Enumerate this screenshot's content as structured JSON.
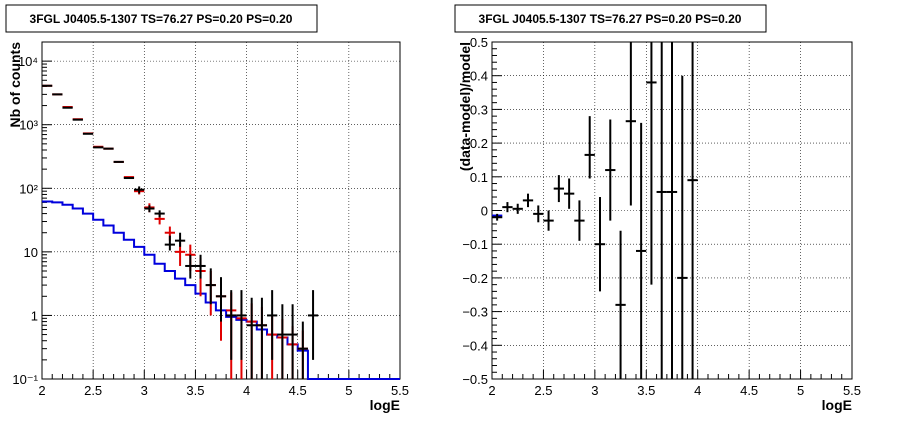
{
  "chart_data": [
    {
      "type": "histogram",
      "title": "3FGL J0405.5-1307 TS=76.27 PS=0.20 PS=0.20",
      "xlabel": "logE",
      "ylabel": "Nb of counts",
      "xlim": [
        2,
        5.5
      ],
      "ylim": [
        0.1,
        20000
      ],
      "yscale": "log",
      "grid": true,
      "xticks": [
        "2",
        "2.5",
        "3",
        "3.5",
        "4",
        "4.5",
        "5",
        "5.5"
      ],
      "yticks": [
        "10⁻¹",
        "1",
        "10",
        "10²",
        "10³",
        "10⁴"
      ],
      "series": [
        {
          "kind": "errorbar",
          "color": "#000000",
          "x": [
            2.05,
            2.15,
            2.25,
            2.35,
            2.45,
            2.55,
            2.65,
            2.75,
            2.85,
            2.95,
            3.05,
            3.15,
            3.25,
            3.35,
            3.45,
            3.55,
            3.65,
            3.75,
            3.85,
            3.95,
            4.05,
            4.15,
            4.25,
            4.35,
            4.45,
            4.55,
            4.65
          ],
          "y": [
            4100,
            3000,
            1850,
            1200,
            720,
            440,
            420,
            260,
            145,
            95,
            48,
            40,
            13,
            15,
            6,
            6,
            3,
            2,
            1,
            1,
            0.7,
            0.7,
            1,
            0.5,
            0.5,
            0.3,
            1
          ],
          "yerr_low": [
            0,
            0,
            0,
            0,
            0,
            0,
            0,
            0,
            0,
            12,
            6,
            5,
            2.5,
            3,
            2.2,
            2.2,
            1.5,
            1.2,
            0.8,
            0.8,
            0.6,
            0.6,
            0.8,
            0.4,
            0.4,
            0.25,
            0.8
          ],
          "yerr_high": [
            0,
            0,
            0,
            0,
            0,
            0,
            0,
            0,
            0,
            12,
            6,
            5,
            5,
            5,
            3,
            3,
            2.5,
            2,
            1.5,
            1.5,
            1.2,
            1.2,
            1.5,
            1,
            1,
            0.5,
            1.5
          ]
        },
        {
          "kind": "errorbar",
          "color": "#e00000",
          "x": [
            2.05,
            2.15,
            2.25,
            2.35,
            2.45,
            2.55,
            2.65,
            2.75,
            2.85,
            2.95,
            3.05,
            3.15,
            3.25,
            3.35,
            3.45,
            3.55,
            3.65,
            3.75,
            3.85,
            3.95,
            4.05,
            4.15,
            4.25,
            4.35,
            4.45,
            4.55
          ],
          "y": [
            4100,
            3000,
            1900,
            1220,
            730,
            450,
            420,
            260,
            150,
            90,
            50,
            33,
            20,
            10,
            9,
            5,
            3,
            2,
            1.2,
            0.9,
            0.8,
            0.7,
            0.5,
            0.45,
            0.35,
            0.3
          ],
          "yerr_low": [
            0,
            0,
            0,
            0,
            0,
            0,
            0,
            0,
            0,
            10,
            8,
            6,
            5,
            4,
            4,
            3,
            2,
            1.6,
            1.1,
            0.85,
            0.75,
            0.66,
            0.48,
            0.43,
            0.33,
            0.28
          ],
          "yerr_high": [
            0,
            0,
            0,
            0,
            0,
            0,
            0,
            0,
            0,
            10,
            8,
            6,
            5,
            4,
            4,
            3,
            2,
            1.6,
            1.1,
            0.85,
            0.75,
            0.66,
            0.48,
            0.43,
            0.33,
            0.28
          ]
        },
        {
          "kind": "step",
          "color": "#0000dd",
          "edges": [
            2.0,
            2.1,
            2.2,
            2.3,
            2.4,
            2.5,
            2.6,
            2.7,
            2.8,
            2.9,
            3.0,
            3.1,
            3.2,
            3.3,
            3.4,
            3.5,
            3.6,
            3.7,
            3.8,
            3.9,
            4.0,
            4.1,
            4.2,
            4.3,
            4.4,
            4.5,
            4.6,
            5.5
          ],
          "values": [
            62,
            60,
            55,
            48,
            40,
            32,
            26,
            20,
            15.5,
            12,
            9,
            6.5,
            5,
            3.8,
            3,
            2.2,
            1.6,
            1.2,
            0.95,
            0.85,
            0.8,
            0.6,
            0.5,
            0.45,
            0.35,
            0.28,
            0.1
          ]
        }
      ]
    },
    {
      "type": "errorbar",
      "title": "3FGL J0405.5-1307 TS=76.27 PS=0.20 PS=0.20",
      "xlabel": "logE",
      "ylabel": "(data-model)/model",
      "xlim": [
        2,
        5.5
      ],
      "ylim": [
        -0.5,
        0.5
      ],
      "grid": true,
      "xticks": [
        "2",
        "2.5",
        "3",
        "3.5",
        "4",
        "4.5",
        "5",
        "5.5"
      ],
      "yticks": [
        "−0.5",
        "−0.4",
        "−0.3",
        "−0.2",
        "−0.1",
        "0",
        "0.1",
        "0.2",
        "0.3",
        "0.4",
        "0.5"
      ],
      "series": [
        {
          "color": "#000000",
          "x": [
            2.05,
            2.15,
            2.25,
            2.35,
            2.45,
            2.55,
            2.65,
            2.75,
            2.85,
            2.95,
            3.05,
            3.15,
            3.25,
            3.35,
            3.45,
            3.55,
            3.65,
            3.75,
            3.85,
            3.95
          ],
          "y": [
            -0.02,
            0.01,
            0.005,
            0.03,
            -0.01,
            -0.03,
            0.065,
            0.05,
            -0.03,
            0.165,
            -0.1,
            0.12,
            -0.28,
            0.265,
            -0.12,
            0.38,
            0.055,
            0.055,
            -0.2,
            0.09
          ],
          "yerr_low": [
            0.01,
            0.015,
            0.015,
            0.02,
            0.025,
            0.03,
            0.04,
            0.045,
            0.06,
            0.07,
            0.14,
            0.15,
            0.22,
            0.25,
            0.38,
            0.6,
            0.6,
            0.6,
            0.6,
            0.6
          ],
          "yerr_high": [
            0.01,
            0.015,
            0.015,
            0.02,
            0.025,
            0.03,
            0.04,
            0.045,
            0.06,
            0.115,
            0.14,
            0.15,
            0.22,
            0.25,
            0.38,
            0.6,
            0.6,
            0.6,
            0.6,
            0.6
          ]
        }
      ]
    }
  ]
}
